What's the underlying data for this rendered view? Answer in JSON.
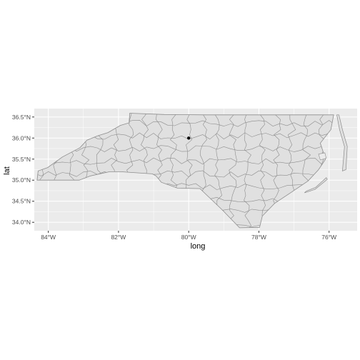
{
  "colors": {
    "panel_background": "#ebebeb",
    "grid_major": "#ffffff",
    "state_fill": "#e0e0e0",
    "county_border": "#8c8c8c",
    "point": "#000000",
    "tick_text": "#4d4d4d"
  },
  "chart_data": {
    "type": "map",
    "region": "North Carolina counties",
    "xlabel": "long",
    "ylabel": "lat",
    "xlim": [
      -84.4,
      -75.2
    ],
    "ylim": [
      33.8,
      36.7
    ],
    "x_ticks": [
      {
        "value": -84,
        "label": "84°W"
      },
      {
        "value": -82,
        "label": "82°W"
      },
      {
        "value": -80,
        "label": "80°W"
      },
      {
        "value": -78,
        "label": "78°W"
      },
      {
        "value": -76,
        "label": "76°W"
      }
    ],
    "y_ticks": [
      {
        "value": 34.0,
        "label": "34.0°N"
      },
      {
        "value": 34.5,
        "label": "34.5°N"
      },
      {
        "value": 35.0,
        "label": "35.0°N"
      },
      {
        "value": 35.5,
        "label": "35.5°N"
      },
      {
        "value": 36.0,
        "label": "36.0°N"
      },
      {
        "value": 36.5,
        "label": "36.5°N"
      }
    ],
    "grid": true,
    "points": [
      {
        "long": -80.0,
        "lat": 36.0
      }
    ],
    "outline": [
      [
        -84.32,
        35.0
      ],
      [
        -84.29,
        35.22
      ],
      [
        -84.02,
        35.3
      ],
      [
        -83.6,
        35.55
      ],
      [
        -83.1,
        35.77
      ],
      [
        -82.9,
        35.95
      ],
      [
        -82.6,
        36.05
      ],
      [
        -82.3,
        36.13
      ],
      [
        -81.95,
        36.3
      ],
      [
        -81.7,
        36.36
      ],
      [
        -81.68,
        36.59
      ],
      [
        -80.7,
        36.56
      ],
      [
        -79.5,
        36.55
      ],
      [
        -78.5,
        36.55
      ],
      [
        -77.5,
        36.55
      ],
      [
        -76.3,
        36.55
      ],
      [
        -75.87,
        36.55
      ],
      [
        -75.95,
        36.2
      ],
      [
        -76.25,
        35.88
      ],
      [
        -76.1,
        35.5
      ],
      [
        -76.3,
        35.25
      ],
      [
        -76.6,
        34.98
      ],
      [
        -77.1,
        34.7
      ],
      [
        -77.55,
        34.45
      ],
      [
        -77.9,
        34.15
      ],
      [
        -77.98,
        33.88
      ],
      [
        -78.55,
        33.87
      ],
      [
        -79.05,
        34.3
      ],
      [
        -79.68,
        34.8
      ],
      [
        -80.32,
        34.81
      ],
      [
        -80.78,
        34.95
      ],
      [
        -80.93,
        35.1
      ],
      [
        -81.04,
        35.15
      ],
      [
        -81.95,
        35.2
      ],
      [
        -82.25,
        35.2
      ],
      [
        -82.8,
        35.1
      ],
      [
        -83.12,
        35.0
      ],
      [
        -84.32,
        35.0
      ]
    ],
    "islands": [
      [
        [
          -75.72,
          36.55
        ],
        [
          -75.62,
          36.2
        ],
        [
          -75.48,
          35.8
        ],
        [
          -75.52,
          35.25
        ],
        [
          -75.62,
          35.22
        ],
        [
          -75.56,
          35.8
        ],
        [
          -75.7,
          36.2
        ],
        [
          -75.78,
          36.55
        ]
      ],
      [
        [
          -76.05,
          35.02
        ],
        [
          -76.4,
          34.78
        ],
        [
          -76.7,
          34.7
        ],
        [
          -76.65,
          34.74
        ],
        [
          -76.38,
          34.83
        ],
        [
          -76.08,
          35.06
        ]
      ]
    ],
    "lakes": [
      [
        [
          -76.3,
          35.62
        ],
        [
          -76.12,
          35.65
        ],
        [
          -76.08,
          35.52
        ],
        [
          -76.25,
          35.48
        ]
      ]
    ]
  }
}
